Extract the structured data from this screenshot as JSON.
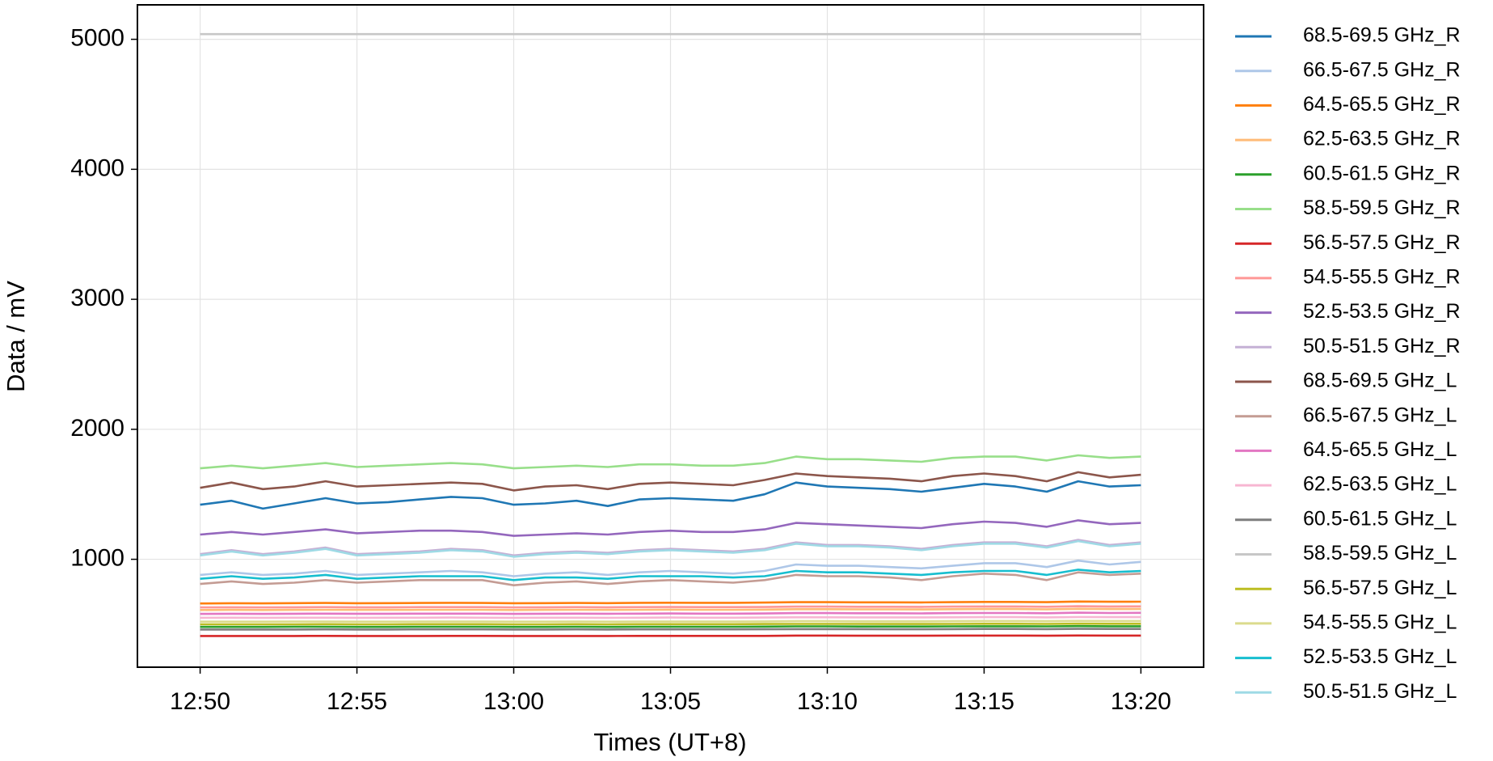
{
  "chart_data": {
    "type": "line",
    "xlabel": "Times (UT+8)",
    "ylabel": "Data / mV",
    "x": [
      "12:50",
      "12:51",
      "12:52",
      "12:53",
      "12:54",
      "12:55",
      "12:56",
      "12:57",
      "12:58",
      "12:59",
      "13:00",
      "13:01",
      "13:02",
      "13:03",
      "13:04",
      "13:05",
      "13:06",
      "13:07",
      "13:08",
      "13:09",
      "13:10",
      "13:11",
      "13:12",
      "13:13",
      "13:14",
      "13:15",
      "13:16",
      "13:17",
      "13:18",
      "13:19",
      "13:20"
    ],
    "xlim": [
      "12:48",
      "13:22"
    ],
    "xticks": [
      "12:50",
      "12:55",
      "13:00",
      "13:05",
      "13:10",
      "13:15",
      "13:20"
    ],
    "ylim": [
      170,
      5265
    ],
    "yticks": [
      1000,
      2000,
      3000,
      4000,
      5000
    ],
    "grid": true,
    "legend": "outside-right",
    "series": [
      {
        "name": "68.5-69.5 GHz_R",
        "color": "#1f77b4",
        "values": [
          1420,
          1450,
          1390,
          1430,
          1470,
          1430,
          1440,
          1460,
          1480,
          1470,
          1420,
          1430,
          1450,
          1410,
          1460,
          1470,
          1460,
          1450,
          1500,
          1590,
          1560,
          1550,
          1540,
          1520,
          1550,
          1580,
          1560,
          1520,
          1600,
          1560,
          1570
        ]
      },
      {
        "name": "66.5-67.5 GHz_R",
        "color": "#aec7e8",
        "values": [
          880,
          900,
          880,
          890,
          910,
          880,
          890,
          900,
          910,
          900,
          870,
          890,
          900,
          880,
          900,
          910,
          900,
          890,
          910,
          960,
          950,
          950,
          940,
          930,
          950,
          970,
          970,
          940,
          990,
          960,
          980
        ]
      },
      {
        "name": "64.5-65.5 GHz_R",
        "color": "#ff7f0e",
        "values": [
          660,
          662,
          661,
          663,
          664,
          662,
          663,
          664,
          665,
          664,
          662,
          663,
          664,
          663,
          665,
          666,
          665,
          665,
          667,
          670,
          670,
          669,
          669,
          668,
          670,
          672,
          672,
          670,
          675,
          673,
          674
        ]
      },
      {
        "name": "62.5-63.5 GHz_R",
        "color": "#ffbb78",
        "values": [
          610,
          611,
          610,
          611,
          612,
          611,
          611,
          612,
          612,
          612,
          610,
          611,
          612,
          611,
          612,
          613,
          612,
          612,
          613,
          616,
          616,
          615,
          615,
          614,
          616,
          617,
          617,
          615,
          619,
          617,
          618
        ]
      },
      {
        "name": "60.5-61.5 GHz_R",
        "color": "#2ca02c",
        "values": [
          480,
          480,
          480,
          481,
          481,
          480,
          480,
          481,
          481,
          481,
          480,
          480,
          481,
          480,
          481,
          481,
          481,
          481,
          482,
          484,
          484,
          483,
          483,
          483,
          484,
          485,
          485,
          484,
          486,
          485,
          485
        ]
      },
      {
        "name": "58.5-59.5 GHz_R",
        "color": "#98df8a",
        "values": [
          1700,
          1720,
          1700,
          1720,
          1740,
          1710,
          1720,
          1730,
          1740,
          1730,
          1700,
          1710,
          1720,
          1710,
          1730,
          1730,
          1720,
          1720,
          1740,
          1790,
          1770,
          1770,
          1760,
          1750,
          1780,
          1790,
          1790,
          1760,
          1800,
          1780,
          1790
        ]
      },
      {
        "name": "56.5-57.5 GHz_R",
        "color": "#d62728",
        "values": [
          410,
          410,
          410,
          410,
          411,
          410,
          410,
          410,
          411,
          411,
          410,
          410,
          410,
          410,
          411,
          411,
          411,
          411,
          411,
          413,
          413,
          412,
          412,
          412,
          413,
          413,
          413,
          412,
          414,
          413,
          413
        ]
      },
      {
        "name": "54.5-55.5 GHz_R",
        "color": "#ff9896",
        "values": [
          630,
          631,
          630,
          631,
          632,
          631,
          631,
          632,
          632,
          632,
          630,
          631,
          632,
          631,
          632,
          633,
          632,
          632,
          633,
          636,
          636,
          635,
          635,
          634,
          636,
          637,
          637,
          635,
          639,
          637,
          638
        ]
      },
      {
        "name": "52.5-53.5 GHz_R",
        "color": "#9467bd",
        "values": [
          1190,
          1210,
          1190,
          1210,
          1230,
          1200,
          1210,
          1220,
          1220,
          1210,
          1180,
          1190,
          1200,
          1190,
          1210,
          1220,
          1210,
          1210,
          1230,
          1280,
          1270,
          1260,
          1250,
          1240,
          1270,
          1290,
          1280,
          1250,
          1300,
          1270,
          1280
        ]
      },
      {
        "name": "50.5-51.5 GHz_R",
        "color": "#c5b0d5",
        "values": [
          1040,
          1070,
          1040,
          1060,
          1090,
          1040,
          1050,
          1060,
          1080,
          1070,
          1030,
          1050,
          1060,
          1050,
          1070,
          1080,
          1070,
          1060,
          1080,
          1130,
          1110,
          1110,
          1100,
          1080,
          1110,
          1130,
          1130,
          1100,
          1150,
          1110,
          1130
        ]
      },
      {
        "name": "68.5-69.5 GHz_L",
        "color": "#8c564b",
        "values": [
          1550,
          1590,
          1540,
          1560,
          1600,
          1560,
          1570,
          1580,
          1590,
          1580,
          1530,
          1560,
          1570,
          1540,
          1580,
          1590,
          1580,
          1570,
          1610,
          1660,
          1640,
          1630,
          1620,
          1600,
          1640,
          1660,
          1640,
          1600,
          1670,
          1630,
          1650
        ]
      },
      {
        "name": "66.5-67.5 GHz_L",
        "color": "#c49c94",
        "values": [
          810,
          830,
          810,
          820,
          840,
          820,
          830,
          840,
          840,
          840,
          800,
          820,
          830,
          810,
          830,
          840,
          830,
          820,
          840,
          880,
          870,
          870,
          860,
          840,
          870,
          890,
          880,
          840,
          900,
          880,
          890
        ]
      },
      {
        "name": "64.5-65.5 GHz_L",
        "color": "#e377c2",
        "values": [
          580,
          581,
          580,
          581,
          582,
          581,
          581,
          582,
          582,
          582,
          580,
          581,
          582,
          581,
          582,
          583,
          582,
          582,
          583,
          586,
          586,
          585,
          585,
          584,
          586,
          587,
          587,
          585,
          589,
          587,
          588
        ]
      },
      {
        "name": "62.5-63.5 GHz_L",
        "color": "#f7b6d2",
        "values": [
          550,
          551,
          550,
          551,
          551,
          550,
          551,
          551,
          552,
          551,
          550,
          551,
          551,
          550,
          551,
          552,
          551,
          551,
          552,
          554,
          554,
          553,
          553,
          553,
          554,
          555,
          555,
          553,
          556,
          555,
          555
        ]
      },
      {
        "name": "60.5-61.5 GHz_L",
        "color": "#7f7f7f",
        "values": [
          460,
          460,
          460,
          460,
          461,
          460,
          460,
          461,
          461,
          461,
          460,
          460,
          461,
          460,
          461,
          461,
          461,
          461,
          462,
          463,
          463,
          463,
          462,
          462,
          463,
          464,
          464,
          463,
          465,
          464,
          464
        ]
      },
      {
        "name": "58.5-59.5 GHz_L",
        "color": "#c7c7c7",
        "values": [
          5040,
          5040,
          5040,
          5040,
          5040,
          5040,
          5040,
          5040,
          5040,
          5040,
          5040,
          5040,
          5040,
          5040,
          5040,
          5040,
          5040,
          5040,
          5040,
          5040,
          5040,
          5040,
          5040,
          5040,
          5040,
          5040,
          5040,
          5040,
          5040,
          5040,
          5040
        ]
      },
      {
        "name": "56.5-57.5 GHz_L",
        "color": "#bcbd22",
        "values": [
          500,
          500,
          500,
          500,
          501,
          500,
          500,
          501,
          501,
          501,
          500,
          500,
          501,
          500,
          501,
          501,
          501,
          501,
          502,
          503,
          503,
          503,
          502,
          502,
          503,
          504,
          504,
          503,
          505,
          504,
          504
        ]
      },
      {
        "name": "54.5-55.5 GHz_L",
        "color": "#dbdb8d",
        "values": [
          520,
          520,
          520,
          521,
          521,
          520,
          520,
          521,
          521,
          521,
          520,
          520,
          521,
          520,
          521,
          521,
          521,
          521,
          522,
          524,
          524,
          523,
          523,
          523,
          524,
          525,
          525,
          524,
          526,
          525,
          525
        ]
      },
      {
        "name": "52.5-53.5 GHz_L",
        "color": "#17becf",
        "values": [
          850,
          870,
          850,
          860,
          880,
          850,
          860,
          870,
          870,
          870,
          840,
          860,
          860,
          850,
          870,
          870,
          870,
          860,
          870,
          910,
          900,
          900,
          890,
          880,
          900,
          910,
          910,
          880,
          920,
          900,
          910
        ]
      },
      {
        "name": "50.5-51.5 GHz_L",
        "color": "#9edae5",
        "values": [
          1030,
          1060,
          1030,
          1050,
          1080,
          1030,
          1040,
          1050,
          1070,
          1060,
          1020,
          1040,
          1050,
          1040,
          1060,
          1070,
          1060,
          1050,
          1070,
          1120,
          1100,
          1100,
          1090,
          1070,
          1100,
          1120,
          1120,
          1090,
          1140,
          1100,
          1120
        ]
      }
    ]
  }
}
